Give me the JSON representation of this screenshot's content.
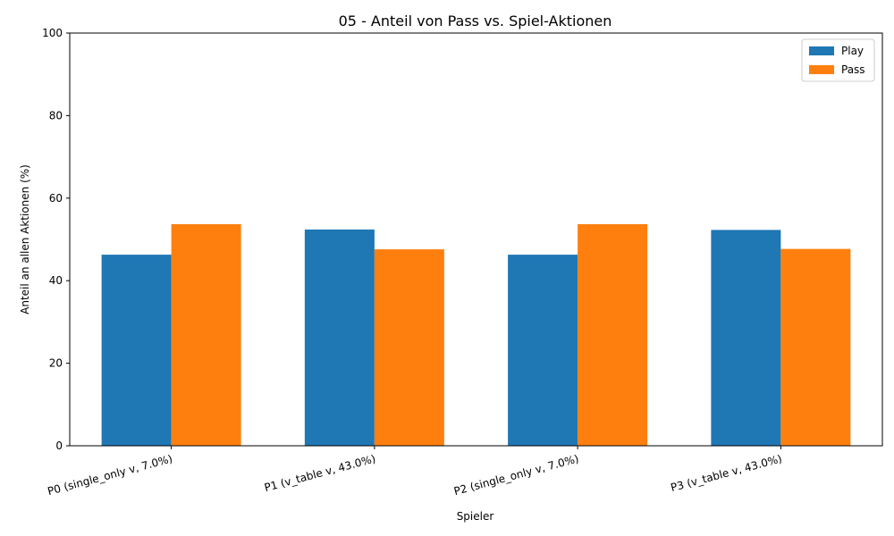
{
  "chart_data": {
    "type": "bar",
    "title": "05 - Anteil von Pass vs. Spiel-Aktionen",
    "xlabel": "Spieler",
    "ylabel": "Anteil an allen Aktionen (%)",
    "ylim": [
      0,
      100
    ],
    "yticks": [
      0,
      20,
      40,
      60,
      80,
      100
    ],
    "grid": false,
    "legend_position": "top-right",
    "categories": [
      "P0 (single_only v, 7.0%)",
      "P1 (v_table v, 43.0%)",
      "P2 (single_only v, 7.0%)",
      "P3 (v_table v, 43.0%)"
    ],
    "series": [
      {
        "name": "Play",
        "color": "#1f77b4",
        "values": [
          46.3,
          52.4,
          46.3,
          52.3
        ]
      },
      {
        "name": "Pass",
        "color": "#ff7f0e",
        "values": [
          53.7,
          47.6,
          53.7,
          47.7
        ]
      }
    ]
  }
}
